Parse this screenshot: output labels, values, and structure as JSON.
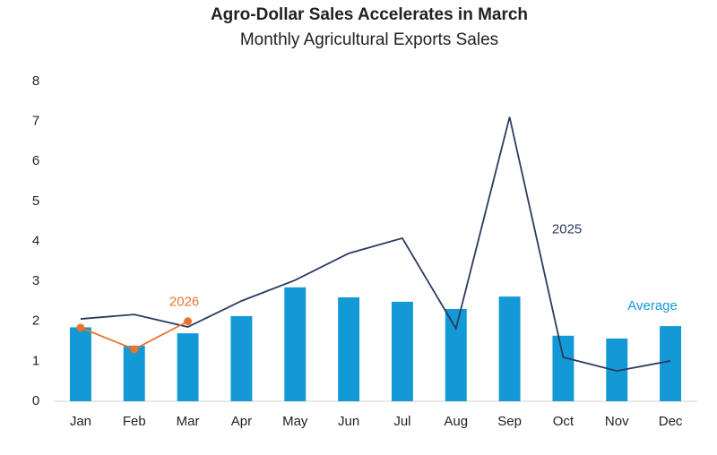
{
  "chart_data": {
    "type": "bar",
    "title": "Agro-Dollar Sales Accelerates in March",
    "subtitle": "Monthly Agricultural Exports Sales",
    "categories": [
      "Jan",
      "Feb",
      "Mar",
      "Apr",
      "May",
      "Jun",
      "Jul",
      "Aug",
      "Sep",
      "Oct",
      "Nov",
      "Dec"
    ],
    "series": [
      {
        "name": "Average",
        "type": "bar",
        "color": "#1399d6",
        "values": [
          1.85,
          1.39,
          1.7,
          2.13,
          2.85,
          2.6,
          2.49,
          2.31,
          2.62,
          1.64,
          1.57,
          1.88
        ]
      },
      {
        "name": "2025",
        "type": "line",
        "color": "#2b3a5e",
        "values": [
          2.06,
          2.17,
          1.86,
          2.51,
          3.03,
          3.7,
          4.08,
          1.82,
          7.11,
          1.1,
          0.76,
          1.01
        ]
      },
      {
        "name": "2026",
        "type": "line",
        "markers": true,
        "color": "#e8742c",
        "values": [
          1.84,
          1.3,
          2.0,
          null,
          null,
          null,
          null,
          null,
          null,
          null,
          null,
          null
        ]
      }
    ],
    "ylim": [
      0,
      8
    ],
    "yticks": [
      0,
      1,
      2,
      3,
      4,
      5,
      6,
      7,
      8
    ],
    "grid": false
  }
}
